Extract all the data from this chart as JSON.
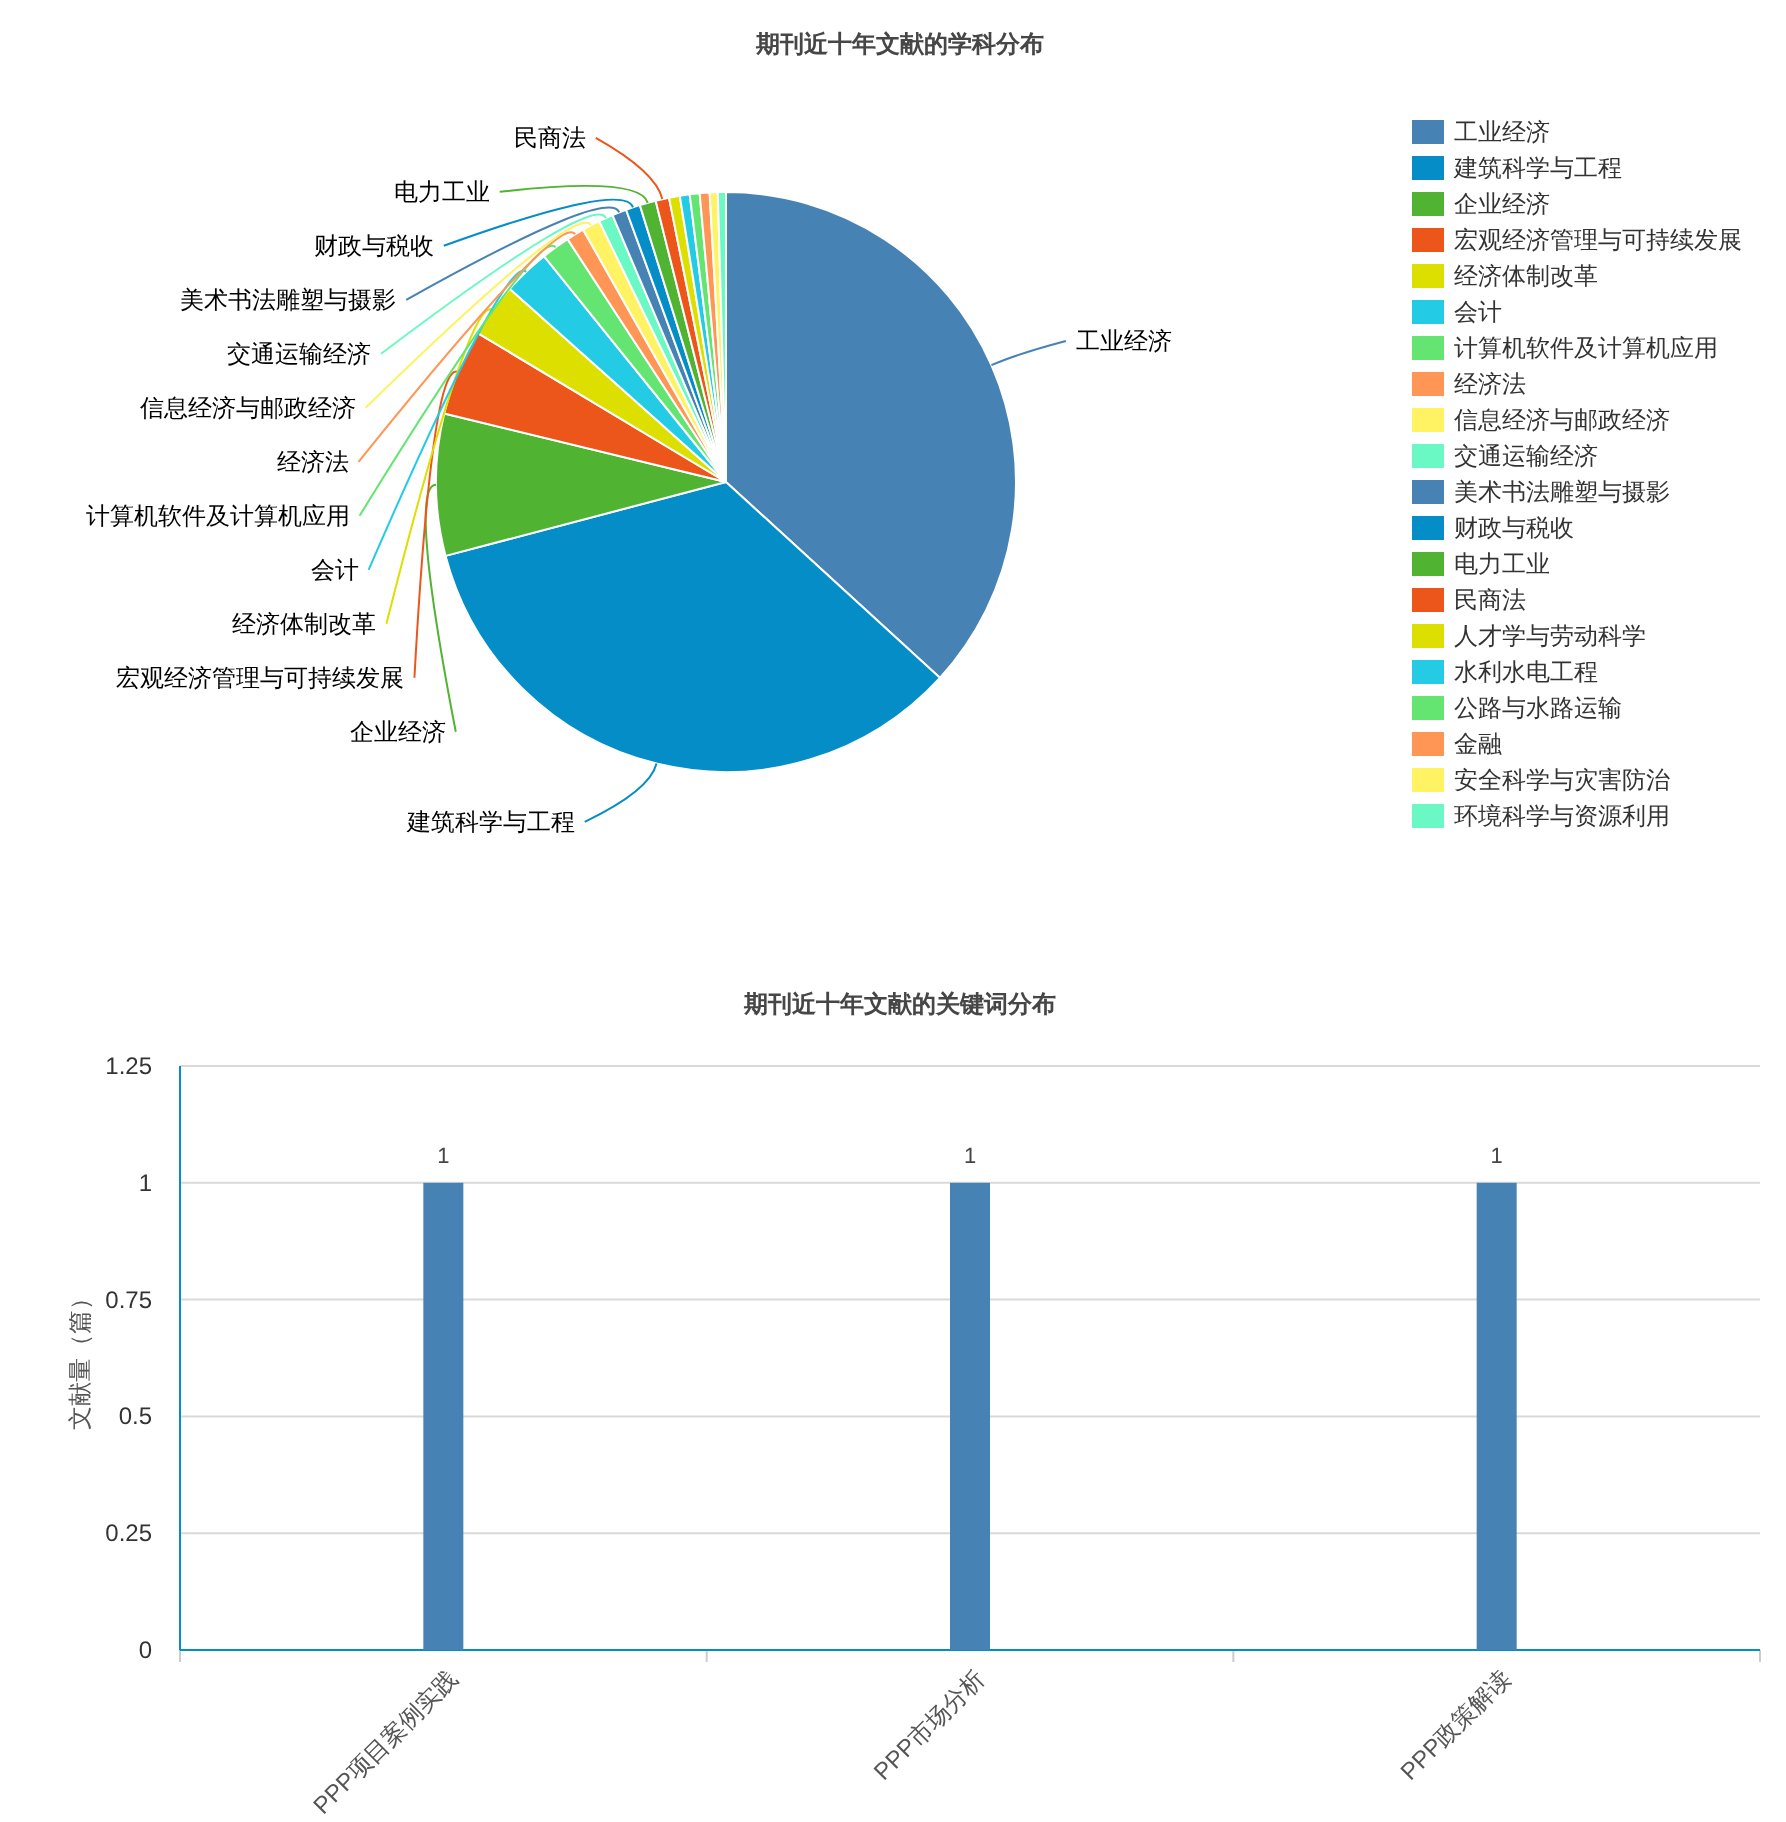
{
  "chart_data": [
    {
      "type": "pie",
      "title": "期刊近十年文献的学科分布",
      "categories": [
        "工业经济",
        "建筑科学与工程",
        "企业经济",
        "宏观经济管理与可持续发展",
        "经济体制改革",
        "会计",
        "计算机软件及计算机应用",
        "经济法",
        "信息经济与邮政经济",
        "交通运输经济",
        "美术书法雕塑与摄影",
        "财政与税收",
        "电力工业",
        "民商法",
        "人才学与劳动科学",
        "水利水电工程",
        "公路与水路运输",
        "金融",
        "安全科学与灾害防治",
        "环境科学与资源利用"
      ],
      "values": [
        36.8,
        34.1,
        7.9,
        4.8,
        3.0,
        2.6,
        1.6,
        1.0,
        1.0,
        0.8,
        0.8,
        0.8,
        0.9,
        0.75,
        0.6,
        0.55,
        0.55,
        0.55,
        0.45,
        0.45
      ],
      "colors": [
        "#4682b4",
        "#058dc7",
        "#50b432",
        "#ed561b",
        "#dddf00",
        "#24cbe5",
        "#64e572",
        "#ff9655",
        "#fff263",
        "#6af9c4",
        "#4682b4",
        "#058dc7",
        "#50b432",
        "#ed561b",
        "#dddf00",
        "#24cbe5",
        "#64e572",
        "#ff9655",
        "#fff263",
        "#6af9c4"
      ],
      "legend": "right"
    },
    {
      "type": "bar",
      "title": "期刊近十年文献的关键词分布",
      "categories": [
        "PPP项目案例实践",
        "PPP市场分析",
        "PPP政策解读"
      ],
      "values": [
        1,
        1,
        1
      ],
      "color": "#4682b4",
      "ylabel": "文献量（篇）",
      "ylim": [
        0,
        1.25
      ],
      "yticks": [
        0,
        0.25,
        0.5,
        0.75,
        1,
        1.25
      ],
      "grid": "y",
      "data_labels": true
    }
  ]
}
